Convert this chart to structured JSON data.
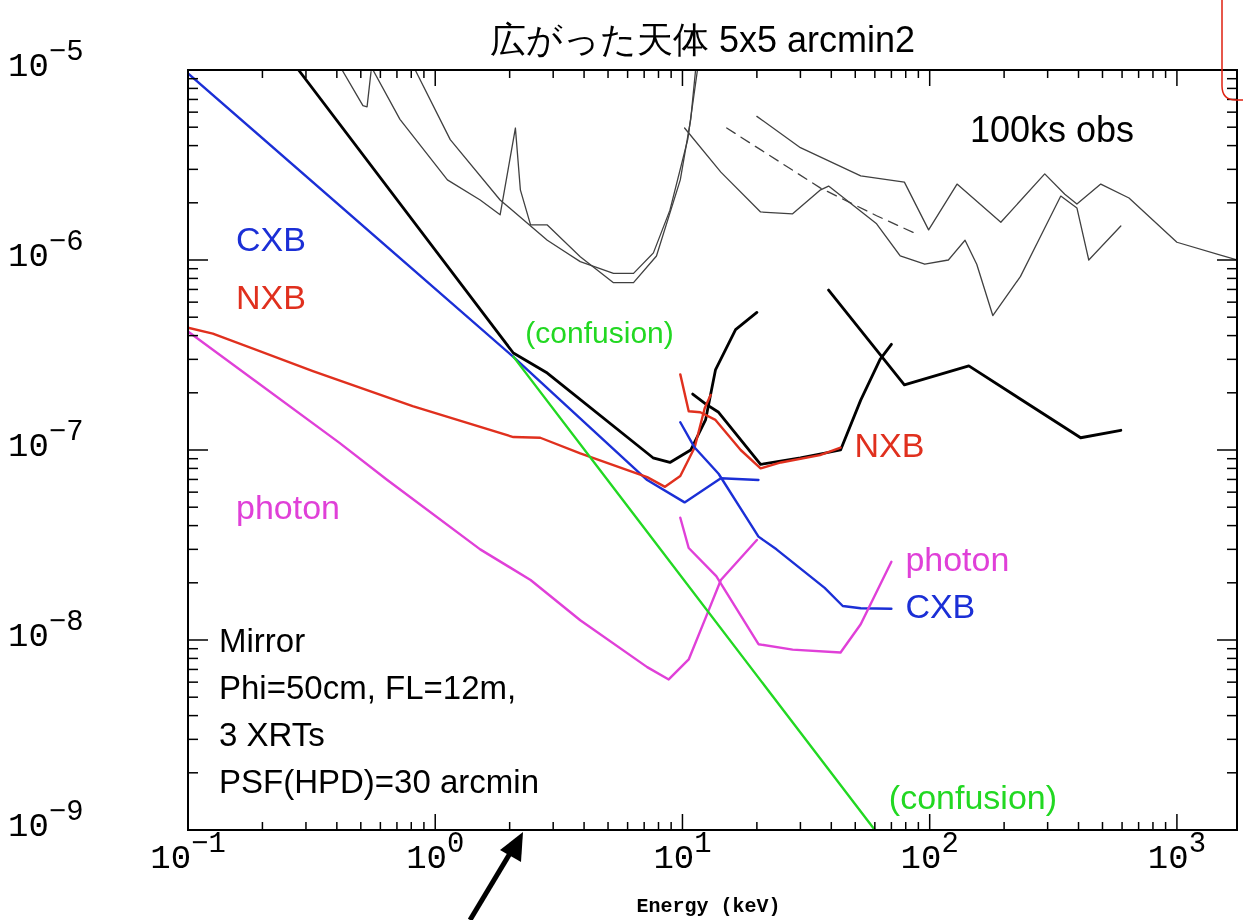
{
  "chart_data": {
    "type": "line",
    "title": "広がった天体 5x5 arcmin2",
    "xlabel": "Energy (keV)",
    "log": "xy",
    "xlim": [
      0.1,
      1750
    ],
    "ylim": [
      1e-09,
      1e-05
    ],
    "xticks": [
      {
        "value": 0.1,
        "label": "10$^{−1}$"
      },
      {
        "value": 1,
        "label": "10$^{0}$"
      },
      {
        "value": 10,
        "label": "10$^{1}$"
      },
      {
        "value": 100,
        "label": "10$^{2}$"
      },
      {
        "value": 1000,
        "label": "10$^{3}$"
      }
    ],
    "yticks": [
      {
        "value": 1e-09,
        "label": "10$^{−9}$"
      },
      {
        "value": 1e-08,
        "label": "10$^{−8}$"
      },
      {
        "value": 1e-07,
        "label": "10$^{−7}$"
      },
      {
        "value": 1e-06,
        "label": "10$^{−6}$"
      },
      {
        "value": 1e-05,
        "label": "10$^{−5}$"
      }
    ],
    "annotations": [
      "100ks obs",
      "Mirror\nPhi=50cm, FL=12m,\n3 XRTs\nPSF(HPD)=30 arcmin"
    ],
    "series": [
      {
        "color": "#404040",
        "x": [
          0.42,
          0.51,
          0.53,
          0.55
        ],
        "values": [
          1e-05,
          6.5e-06,
          6.4e-06,
          9.8e-06
        ]
      },
      {
        "color": "#404040",
        "x": [
          0.83,
          1.15,
          1.83,
          2.84,
          3.86,
          5.26,
          6.34,
          7.63,
          8.9,
          10.5,
          11.5
        ],
        "values": [
          1e-05,
          4.3e-06,
          2.07e-06,
          1.27e-06,
          9.8e-07,
          8.5e-07,
          8.5e-07,
          1.09e-06,
          1.83e-06,
          4.3e-06,
          1e-05
        ]
      },
      {
        "color": "#404040",
        "x": [
          0.56,
          0.72,
          1.12,
          1.52,
          1.83,
          2.11,
          2.21,
          2.43,
          2.84,
          3.86,
          5.26,
          6.34,
          7.85,
          9.8,
          10.8,
          11.3
        ],
        "values": [
          1e-05,
          5.5e-06,
          2.64e-06,
          2.07e-06,
          1.73e-06,
          4.95e-06,
          2.34e-06,
          1.53e-06,
          1.53e-06,
          1.04e-06,
          7.6e-07,
          7.6e-07,
          1.05e-06,
          2.64e-06,
          5.5e-06,
          1e-05
        ]
      },
      {
        "color": "#404040",
        "x": [
          10.2,
          14.3,
          20.7,
          27.9,
          36.2,
          39,
          61,
          76,
          95.5,
          119,
          139,
          155,
          180,
          233,
          339,
          394,
          440,
          593
        ],
        "values": [
          4.95e-06,
          2.9e-06,
          1.79e-06,
          1.75e-06,
          2.34e-06,
          2.45e-06,
          1.55e-06,
          1.05e-06,
          9.5e-07,
          1e-06,
          1.27e-06,
          9.5e-07,
          5.1e-07,
          8.2e-07,
          2.17e-06,
          1.88e-06,
          1e-06,
          1.51e-06
        ]
      },
      {
        "color": "#404040",
        "x": [
          20,
          30,
          52.6,
          79,
          99,
          129,
          194,
          292,
          352,
          394,
          492,
          640,
          1000,
          1750
        ],
        "values": [
          5.7e-06,
          3.9e-06,
          2.77e-06,
          2.57e-06,
          1.44e-06,
          2.51e-06,
          1.58e-06,
          2.84e-06,
          2.22e-06,
          1.97e-06,
          2.51e-06,
          2.12e-06,
          1.24e-06,
          1e-06
        ]
      },
      {
        "color": "#404040",
        "line_style": "dashed",
        "x": [
          15.1,
          36.2,
          61,
          88.5
        ],
        "values": [
          4.95e-06,
          2.39e-06,
          1.71e-06,
          1.37e-06
        ]
      },
      {
        "color": "#000000",
        "x": [
          0.28,
          2.07,
          2.84,
          7.6,
          8.9,
          10.8,
          12.4,
          13.6,
          16.4,
          20
        ],
        "values": [
          1e-05,
          3.24e-07,
          2.54e-07,
          9.1e-08,
          8.6e-08,
          1e-07,
          1.44e-07,
          2.64e-07,
          4.3e-07,
          5.3e-07
        ]
      },
      {
        "color": "#000000",
        "x": [
          11,
          12.4,
          14,
          20.7,
          30,
          43.6,
          52.6,
          63,
          70
        ],
        "values": [
          1.97e-07,
          1.75e-07,
          1.58e-07,
          8.4e-08,
          9.1e-08,
          1e-07,
          1.83e-07,
          3e-07,
          3.6e-07
        ]
      },
      {
        "color": "#000000",
        "x": [
          39,
          79,
          144,
          408,
          593
        ],
        "values": [
          6.95e-07,
          2.2e-07,
          2.77e-07,
          1.16e-07,
          1.27e-07
        ]
      },
      {
        "name": "CXB",
        "color": "#1b2fd6",
        "x": [
          0.1,
          2.07,
          7.2,
          10.2,
          14.3,
          20.3
        ],
        "values": [
          9.6e-06,
          3.09e-07,
          6.95e-08,
          5.3e-08,
          7.1e-08,
          6.95e-08
        ]
      },
      {
        "name": "NXB",
        "color": "#e0301e",
        "x": [
          0.1,
          0.126,
          0.32,
          0.81,
          2.07,
          2.66,
          3.86,
          7.2,
          8.5,
          9.8,
          11.2,
          12.3,
          13
        ],
        "values": [
          4.4e-07,
          4.1e-07,
          2.6e-07,
          1.7e-07,
          1.17e-07,
          1.16e-07,
          9.6e-08,
          7.2e-08,
          6.4e-08,
          7.3e-08,
          1.03e-07,
          1.66e-07,
          1.95e-07
        ]
      },
      {
        "name": "photon",
        "color": "#e040d8",
        "x": [
          0.1,
          0.41,
          0.64,
          1.52,
          2.43,
          3.86,
          7.2,
          8.8,
          10.6,
          12.5,
          14.3,
          20
        ],
        "values": [
          4.2e-07,
          1.09e-07,
          6.95e-08,
          3e-08,
          2.07e-08,
          1.27e-08,
          7.2e-09,
          6.2e-09,
          7.9e-09,
          1.34e-08,
          2.07e-08,
          3.36e-08
        ]
      },
      {
        "name": "NXB",
        "color": "#e0301e",
        "x": [
          9.8,
          10.6,
          11.8,
          13.6,
          17.2,
          20.7,
          25,
          36,
          43.6
        ],
        "values": [
          2.5e-07,
          1.6e-07,
          1.58e-07,
          1.44e-07,
          1e-07,
          8e-08,
          8.6e-08,
          9.4e-08,
          1.03e-07
        ]
      },
      {
        "name": "CXB",
        "color": "#1b2fd6",
        "x": [
          9.8,
          11.2,
          14,
          20.3,
          24,
          37.6,
          44.5,
          52.6,
          70
        ],
        "values": [
          1.4e-07,
          1.03e-07,
          7.5e-08,
          3.5e-08,
          3e-08,
          1.88e-08,
          1.51e-08,
          1.47e-08,
          1.46e-08
        ]
      },
      {
        "name": "photon",
        "color": "#e040d8",
        "x": [
          9.8,
          10.6,
          13.7,
          20.3,
          27.9,
          43.6,
          52.6,
          70
        ],
        "values": [
          4.4e-08,
          3.05e-08,
          2.17e-08,
          9.5e-09,
          8.9e-09,
          8.6e-09,
          1.21e-08,
          2.58e-08
        ]
      },
      {
        "name": "(confusion)",
        "color": "#22d822",
        "x": [
          2.07,
          60
        ],
        "values": [
          3.1e-07,
          1e-09
        ]
      }
    ]
  }
}
